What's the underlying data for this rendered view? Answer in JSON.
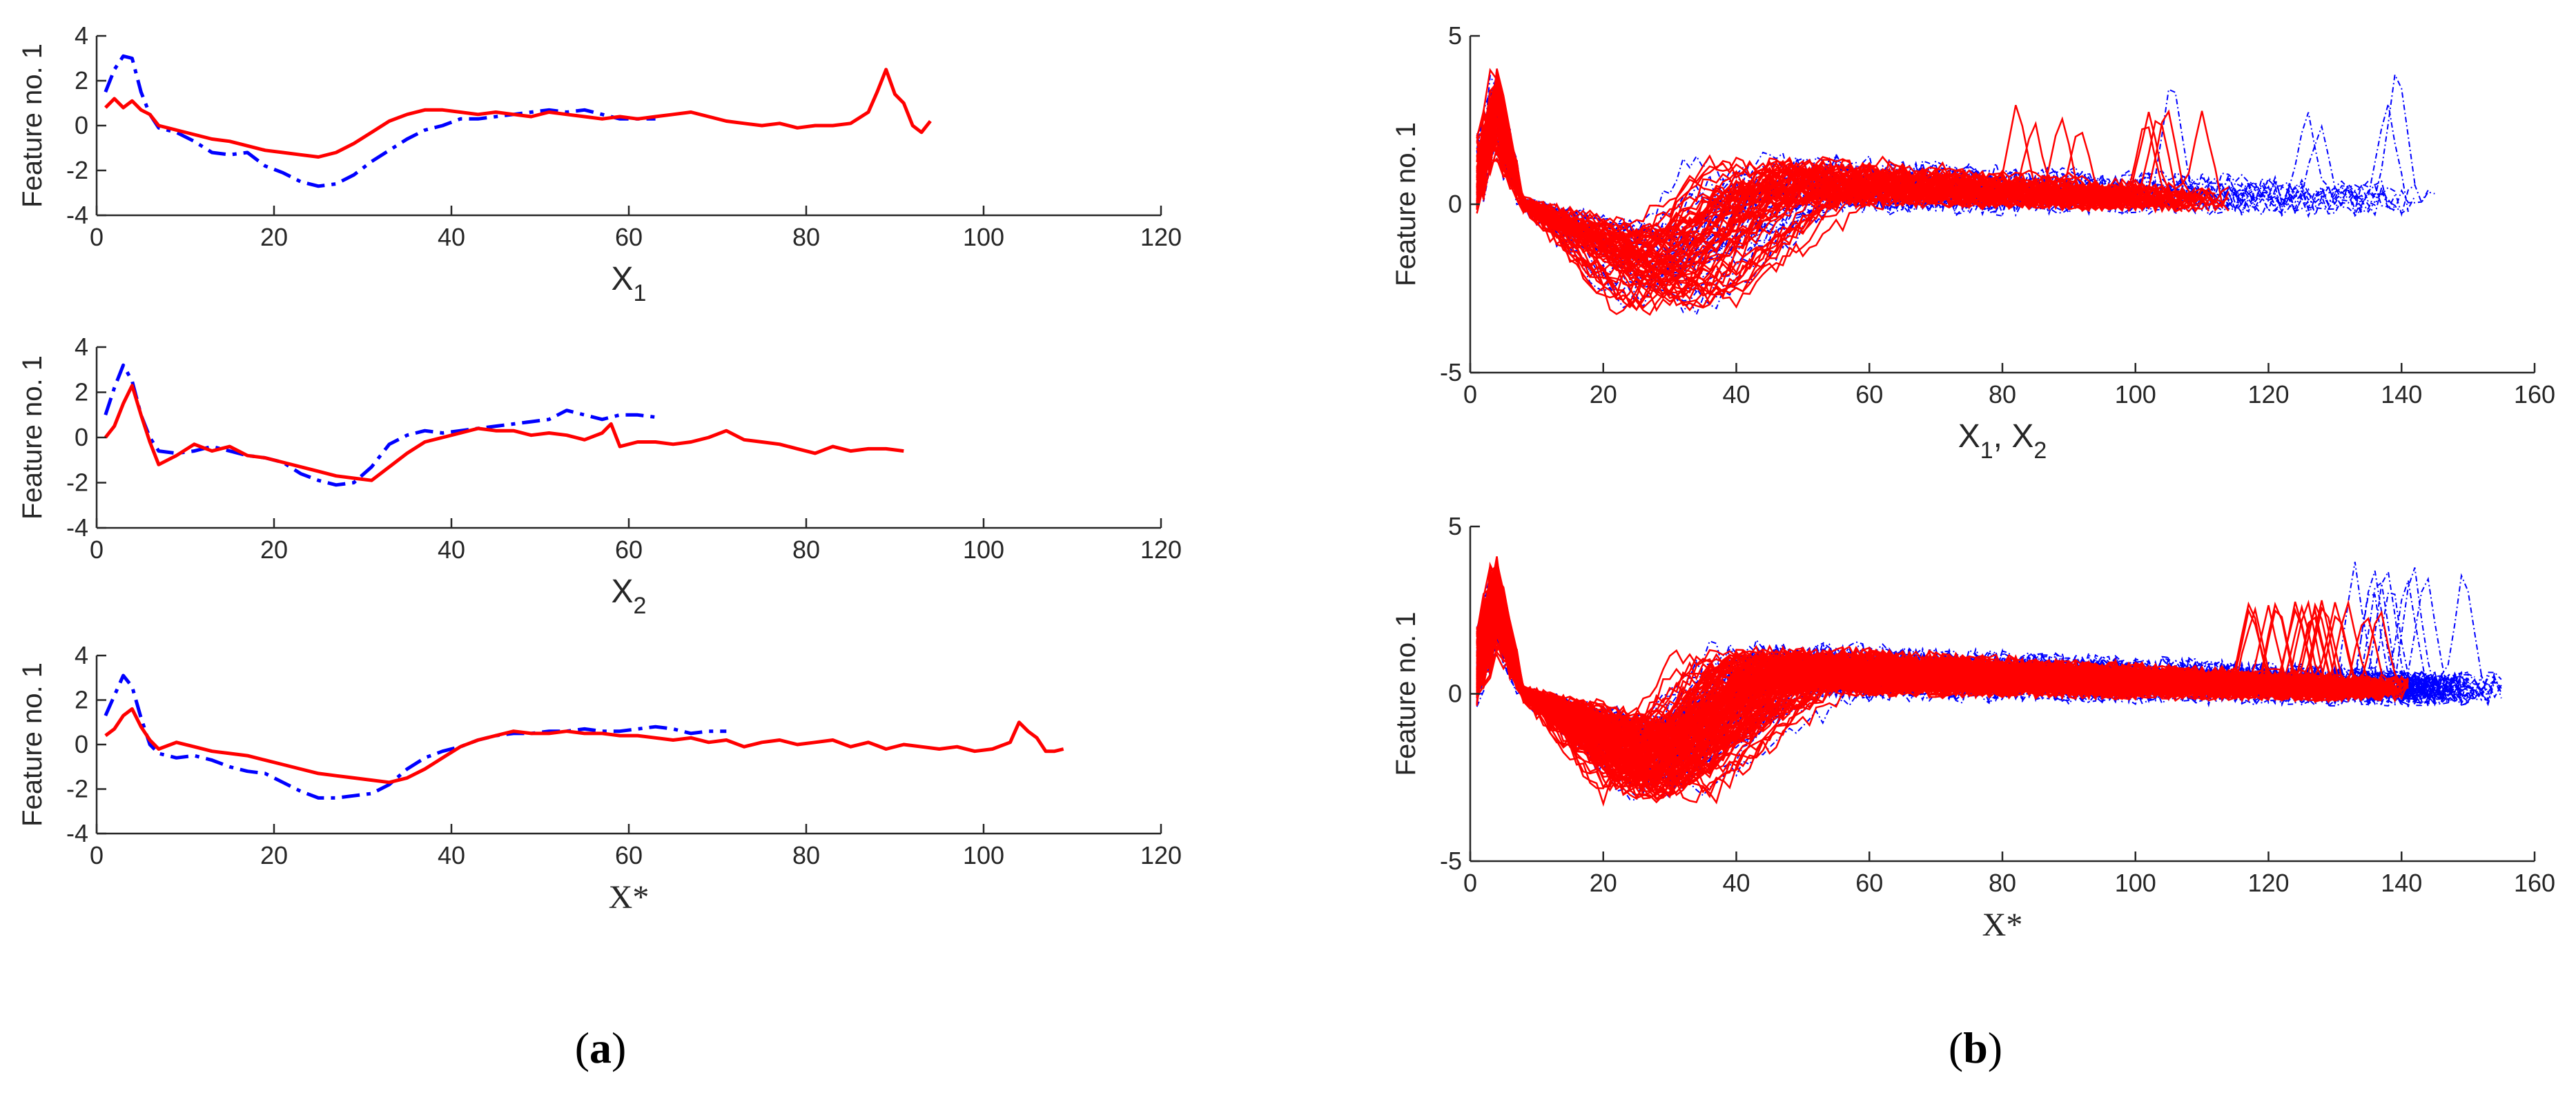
{
  "panel_labels": {
    "a_open": "(",
    "a_letter": "a",
    "a_close": ")",
    "b_open": "(",
    "b_letter": "b",
    "b_close": ")"
  },
  "colors": {
    "series_1": "#0000ff",
    "series_2": "#ff0000"
  },
  "chart_data": [
    {
      "id": "a1",
      "type": "line",
      "ylabel": "Feature no. 1",
      "xlabel": "X",
      "xlabel_sub": "1",
      "xlim": [
        0,
        120
      ],
      "ylim": [
        -4,
        4
      ],
      "xticks": [
        "0",
        "20",
        "40",
        "60",
        "80",
        "100",
        "120"
      ],
      "yticks": [
        "-4",
        "-2",
        "0",
        "2",
        "4"
      ],
      "series": [
        {
          "name": "blue dash-dot",
          "style": "dashdot",
          "color": "#0000ff",
          "x": [
            1,
            2,
            3,
            4,
            5,
            6,
            7,
            9,
            11,
            13,
            15,
            17,
            19,
            21,
            23,
            25,
            27,
            29,
            31,
            33,
            35,
            37,
            39,
            41,
            43,
            45,
            47,
            49,
            51,
            53,
            55,
            57,
            59,
            61,
            63
          ],
          "y": [
            1.5,
            2.5,
            3.1,
            3.0,
            1.5,
            0.5,
            -0.1,
            -0.3,
            -0.7,
            -1.2,
            -1.3,
            -1.2,
            -1.8,
            -2.1,
            -2.5,
            -2.7,
            -2.6,
            -2.2,
            -1.6,
            -1.1,
            -0.6,
            -0.2,
            0.0,
            0.3,
            0.3,
            0.4,
            0.5,
            0.6,
            0.7,
            0.6,
            0.7,
            0.5,
            0.3,
            0.3,
            0.3
          ]
        },
        {
          "name": "red solid",
          "style": "solid",
          "color": "#ff0000",
          "x": [
            1,
            2,
            3,
            4,
            5,
            6,
            7,
            9,
            11,
            13,
            15,
            17,
            19,
            21,
            23,
            25,
            27,
            29,
            31,
            33,
            35,
            37,
            39,
            41,
            43,
            45,
            47,
            49,
            51,
            53,
            55,
            57,
            59,
            61,
            63,
            65,
            67,
            69,
            71,
            73,
            75,
            77,
            79,
            81,
            83,
            85,
            87,
            88,
            89,
            90,
            91,
            92,
            93,
            94
          ],
          "y": [
            0.8,
            1.2,
            0.8,
            1.1,
            0.7,
            0.5,
            0.0,
            -0.2,
            -0.4,
            -0.6,
            -0.7,
            -0.9,
            -1.1,
            -1.2,
            -1.3,
            -1.4,
            -1.2,
            -0.8,
            -0.3,
            0.2,
            0.5,
            0.7,
            0.7,
            0.6,
            0.5,
            0.6,
            0.5,
            0.4,
            0.6,
            0.5,
            0.4,
            0.3,
            0.4,
            0.3,
            0.4,
            0.5,
            0.6,
            0.4,
            0.2,
            0.1,
            0.0,
            0.1,
            -0.1,
            0.0,
            0.0,
            0.1,
            0.6,
            1.5,
            2.5,
            1.4,
            1.0,
            0.0,
            -0.3,
            0.2
          ]
        }
      ]
    },
    {
      "id": "a2",
      "type": "line",
      "ylabel": "Feature no. 1",
      "xlabel": "X",
      "xlabel_sub": "2",
      "xlim": [
        0,
        120
      ],
      "ylim": [
        -4,
        4
      ],
      "xticks": [
        "0",
        "20",
        "40",
        "60",
        "80",
        "100",
        "120"
      ],
      "yticks": [
        "-4",
        "-2",
        "0",
        "2",
        "4"
      ],
      "series": [
        {
          "name": "blue dash-dot",
          "style": "dashdot",
          "color": "#0000ff",
          "x": [
            1,
            2,
            3,
            4,
            5,
            6,
            7,
            9,
            11,
            13,
            15,
            17,
            19,
            21,
            23,
            25,
            27,
            29,
            31,
            33,
            35,
            37,
            39,
            41,
            43,
            45,
            47,
            49,
            51,
            53,
            55,
            57,
            59,
            61,
            63
          ],
          "y": [
            1.0,
            2.2,
            3.2,
            2.5,
            1.0,
            0.0,
            -0.6,
            -0.7,
            -0.6,
            -0.4,
            -0.6,
            -0.8,
            -0.9,
            -1.1,
            -1.6,
            -1.9,
            -2.1,
            -2.0,
            -1.3,
            -0.3,
            0.1,
            0.3,
            0.2,
            0.3,
            0.4,
            0.5,
            0.6,
            0.7,
            0.8,
            1.2,
            1.0,
            0.8,
            1.0,
            1.0,
            0.9
          ]
        },
        {
          "name": "red solid",
          "style": "solid",
          "color": "#ff0000",
          "x": [
            1,
            2,
            3,
            4,
            5,
            6,
            7,
            9,
            11,
            13,
            15,
            17,
            19,
            21,
            23,
            25,
            27,
            29,
            31,
            33,
            35,
            37,
            39,
            41,
            43,
            45,
            47,
            49,
            51,
            53,
            55,
            57,
            58,
            59,
            61,
            63,
            65,
            67,
            69,
            71,
            73,
            75,
            77,
            79,
            81,
            83,
            85,
            87,
            89,
            91
          ],
          "y": [
            0.0,
            0.5,
            1.5,
            2.3,
            1.0,
            -0.2,
            -1.2,
            -0.8,
            -0.3,
            -0.6,
            -0.4,
            -0.8,
            -0.9,
            -1.1,
            -1.3,
            -1.5,
            -1.7,
            -1.8,
            -1.9,
            -1.3,
            -0.7,
            -0.2,
            0.0,
            0.2,
            0.4,
            0.3,
            0.3,
            0.1,
            0.2,
            0.1,
            -0.1,
            0.2,
            0.6,
            -0.4,
            -0.2,
            -0.2,
            -0.3,
            -0.2,
            0.0,
            0.3,
            -0.1,
            -0.2,
            -0.3,
            -0.5,
            -0.7,
            -0.4,
            -0.6,
            -0.5,
            -0.5,
            -0.6
          ]
        }
      ]
    },
    {
      "id": "a3",
      "type": "line",
      "ylabel": "Feature no. 1",
      "xlabel": "X*",
      "xlabel_sub": "",
      "xlim": [
        0,
        120
      ],
      "ylim": [
        -4,
        4
      ],
      "xticks": [
        "0",
        "20",
        "40",
        "60",
        "80",
        "100",
        "120"
      ],
      "yticks": [
        "-4",
        "-2",
        "0",
        "2",
        "4"
      ],
      "series": [
        {
          "name": "blue dash-dot",
          "style": "dashdot",
          "color": "#0000ff",
          "x": [
            1,
            2,
            3,
            4,
            5,
            6,
            7,
            9,
            11,
            13,
            15,
            17,
            19,
            21,
            23,
            25,
            27,
            29,
            31,
            33,
            35,
            37,
            39,
            41,
            43,
            45,
            47,
            49,
            51,
            53,
            55,
            57,
            59,
            61,
            63,
            65,
            67,
            69,
            71
          ],
          "y": [
            1.3,
            2.2,
            3.1,
            2.6,
            1.2,
            0.0,
            -0.4,
            -0.6,
            -0.5,
            -0.7,
            -1.0,
            -1.2,
            -1.3,
            -1.7,
            -2.1,
            -2.4,
            -2.4,
            -2.3,
            -2.2,
            -1.8,
            -1.1,
            -0.6,
            -0.3,
            -0.1,
            0.2,
            0.4,
            0.5,
            0.5,
            0.6,
            0.6,
            0.7,
            0.6,
            0.6,
            0.7,
            0.8,
            0.7,
            0.5,
            0.6,
            0.6
          ]
        },
        {
          "name": "red solid",
          "style": "solid",
          "color": "#ff0000",
          "x": [
            1,
            2,
            3,
            4,
            5,
            6,
            7,
            9,
            11,
            13,
            15,
            17,
            19,
            21,
            23,
            25,
            27,
            29,
            31,
            33,
            35,
            37,
            39,
            41,
            43,
            45,
            47,
            49,
            51,
            53,
            55,
            57,
            59,
            61,
            63,
            65,
            67,
            69,
            71,
            73,
            75,
            77,
            79,
            81,
            83,
            85,
            87,
            89,
            91,
            93,
            95,
            97,
            99,
            101,
            103,
            104,
            105,
            106,
            107,
            108,
            109
          ],
          "y": [
            0.4,
            0.7,
            1.3,
            1.6,
            0.8,
            0.2,
            -0.2,
            0.1,
            -0.1,
            -0.3,
            -0.4,
            -0.5,
            -0.7,
            -0.9,
            -1.1,
            -1.3,
            -1.4,
            -1.5,
            -1.6,
            -1.7,
            -1.5,
            -1.1,
            -0.6,
            -0.1,
            0.2,
            0.4,
            0.6,
            0.5,
            0.5,
            0.6,
            0.5,
            0.5,
            0.4,
            0.4,
            0.3,
            0.2,
            0.3,
            0.1,
            0.2,
            -0.1,
            0.1,
            0.2,
            0.0,
            0.1,
            0.2,
            -0.1,
            0.1,
            -0.2,
            0.0,
            -0.1,
            -0.2,
            -0.1,
            -0.3,
            -0.2,
            0.1,
            1.0,
            0.6,
            0.3,
            -0.3,
            -0.3,
            -0.2
          ]
        }
      ]
    },
    {
      "id": "b1",
      "type": "line",
      "ylabel": "Feature no. 1",
      "xlabel": "X",
      "xlabel_sub": "1",
      "xlabel_sep": ", X",
      "xlabel_sub2": "2",
      "xlim": [
        0,
        160
      ],
      "ylim": [
        -5,
        5
      ],
      "xticks": [
        "0",
        "20",
        "40",
        "60",
        "80",
        "100",
        "120",
        "140",
        "160"
      ],
      "yticks": [
        "-5",
        "0",
        "5"
      ],
      "ensemble": {
        "blue": {
          "count": 35,
          "x_end_min": 60,
          "x_end_max": 147,
          "spike_peaks": [
            4.0,
            4.3,
            2.7,
            3.0,
            2.4
          ]
        },
        "red": {
          "count": 60,
          "x_end_min": 95,
          "x_end_max": 115,
          "spike_peaks": [
            2.7,
            2.9,
            2.5
          ]
        }
      }
    },
    {
      "id": "b2",
      "type": "line",
      "ylabel": "Feature no. 1",
      "xlabel": "X*",
      "xlabel_sub": "",
      "xlim": [
        0,
        160
      ],
      "ylim": [
        -5,
        5
      ],
      "xticks": [
        "0",
        "20",
        "40",
        "60",
        "80",
        "100",
        "120",
        "140",
        "160"
      ],
      "yticks": [
        "-5",
        "0",
        "5"
      ],
      "ensemble": {
        "blue": {
          "count": 70,
          "x_end_min": 140,
          "x_end_max": 156,
          "spike_peaks": [
            4.0,
            3.8,
            3.5
          ]
        },
        "red": {
          "count": 140,
          "x_end_min": 128,
          "x_end_max": 142,
          "spike_peaks": [
            2.8,
            2.6
          ]
        }
      }
    }
  ]
}
